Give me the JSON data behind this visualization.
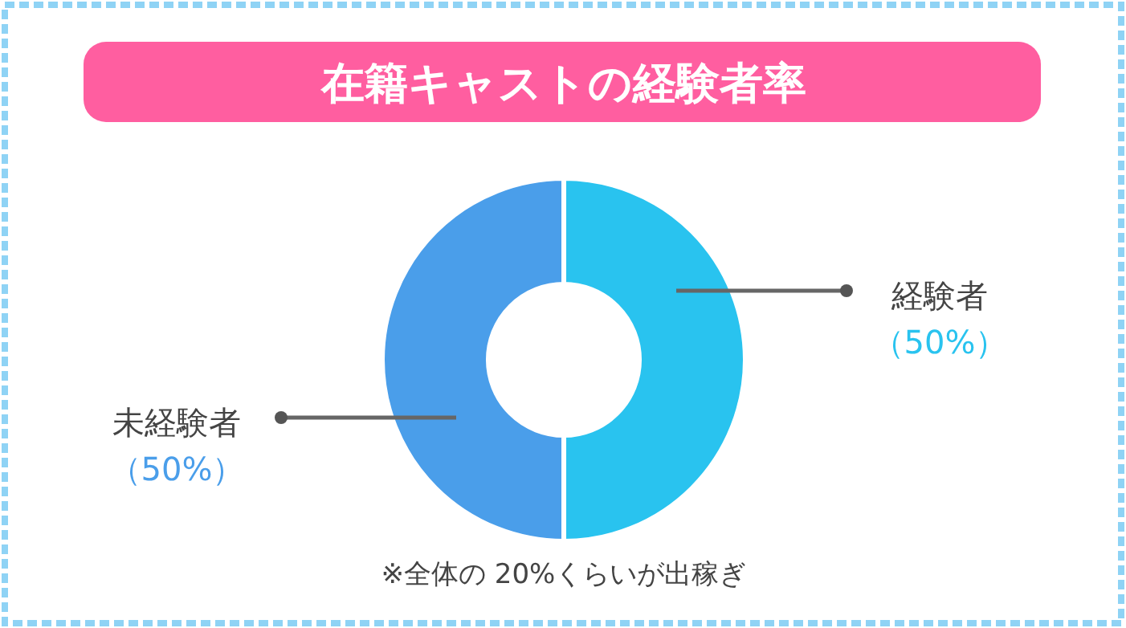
{
  "chart_data": {
    "type": "donut",
    "title": "在籍キャストの経験者率",
    "categories": [
      "経験者",
      "未経験者"
    ],
    "values": [
      50,
      50
    ],
    "colors": [
      "#29c3ef",
      "#4a9eea"
    ],
    "value_labels": [
      "（50%）",
      "（50%）"
    ],
    "annotations": [
      "※全体の 20%くらいが出稼ぎ"
    ]
  }
}
